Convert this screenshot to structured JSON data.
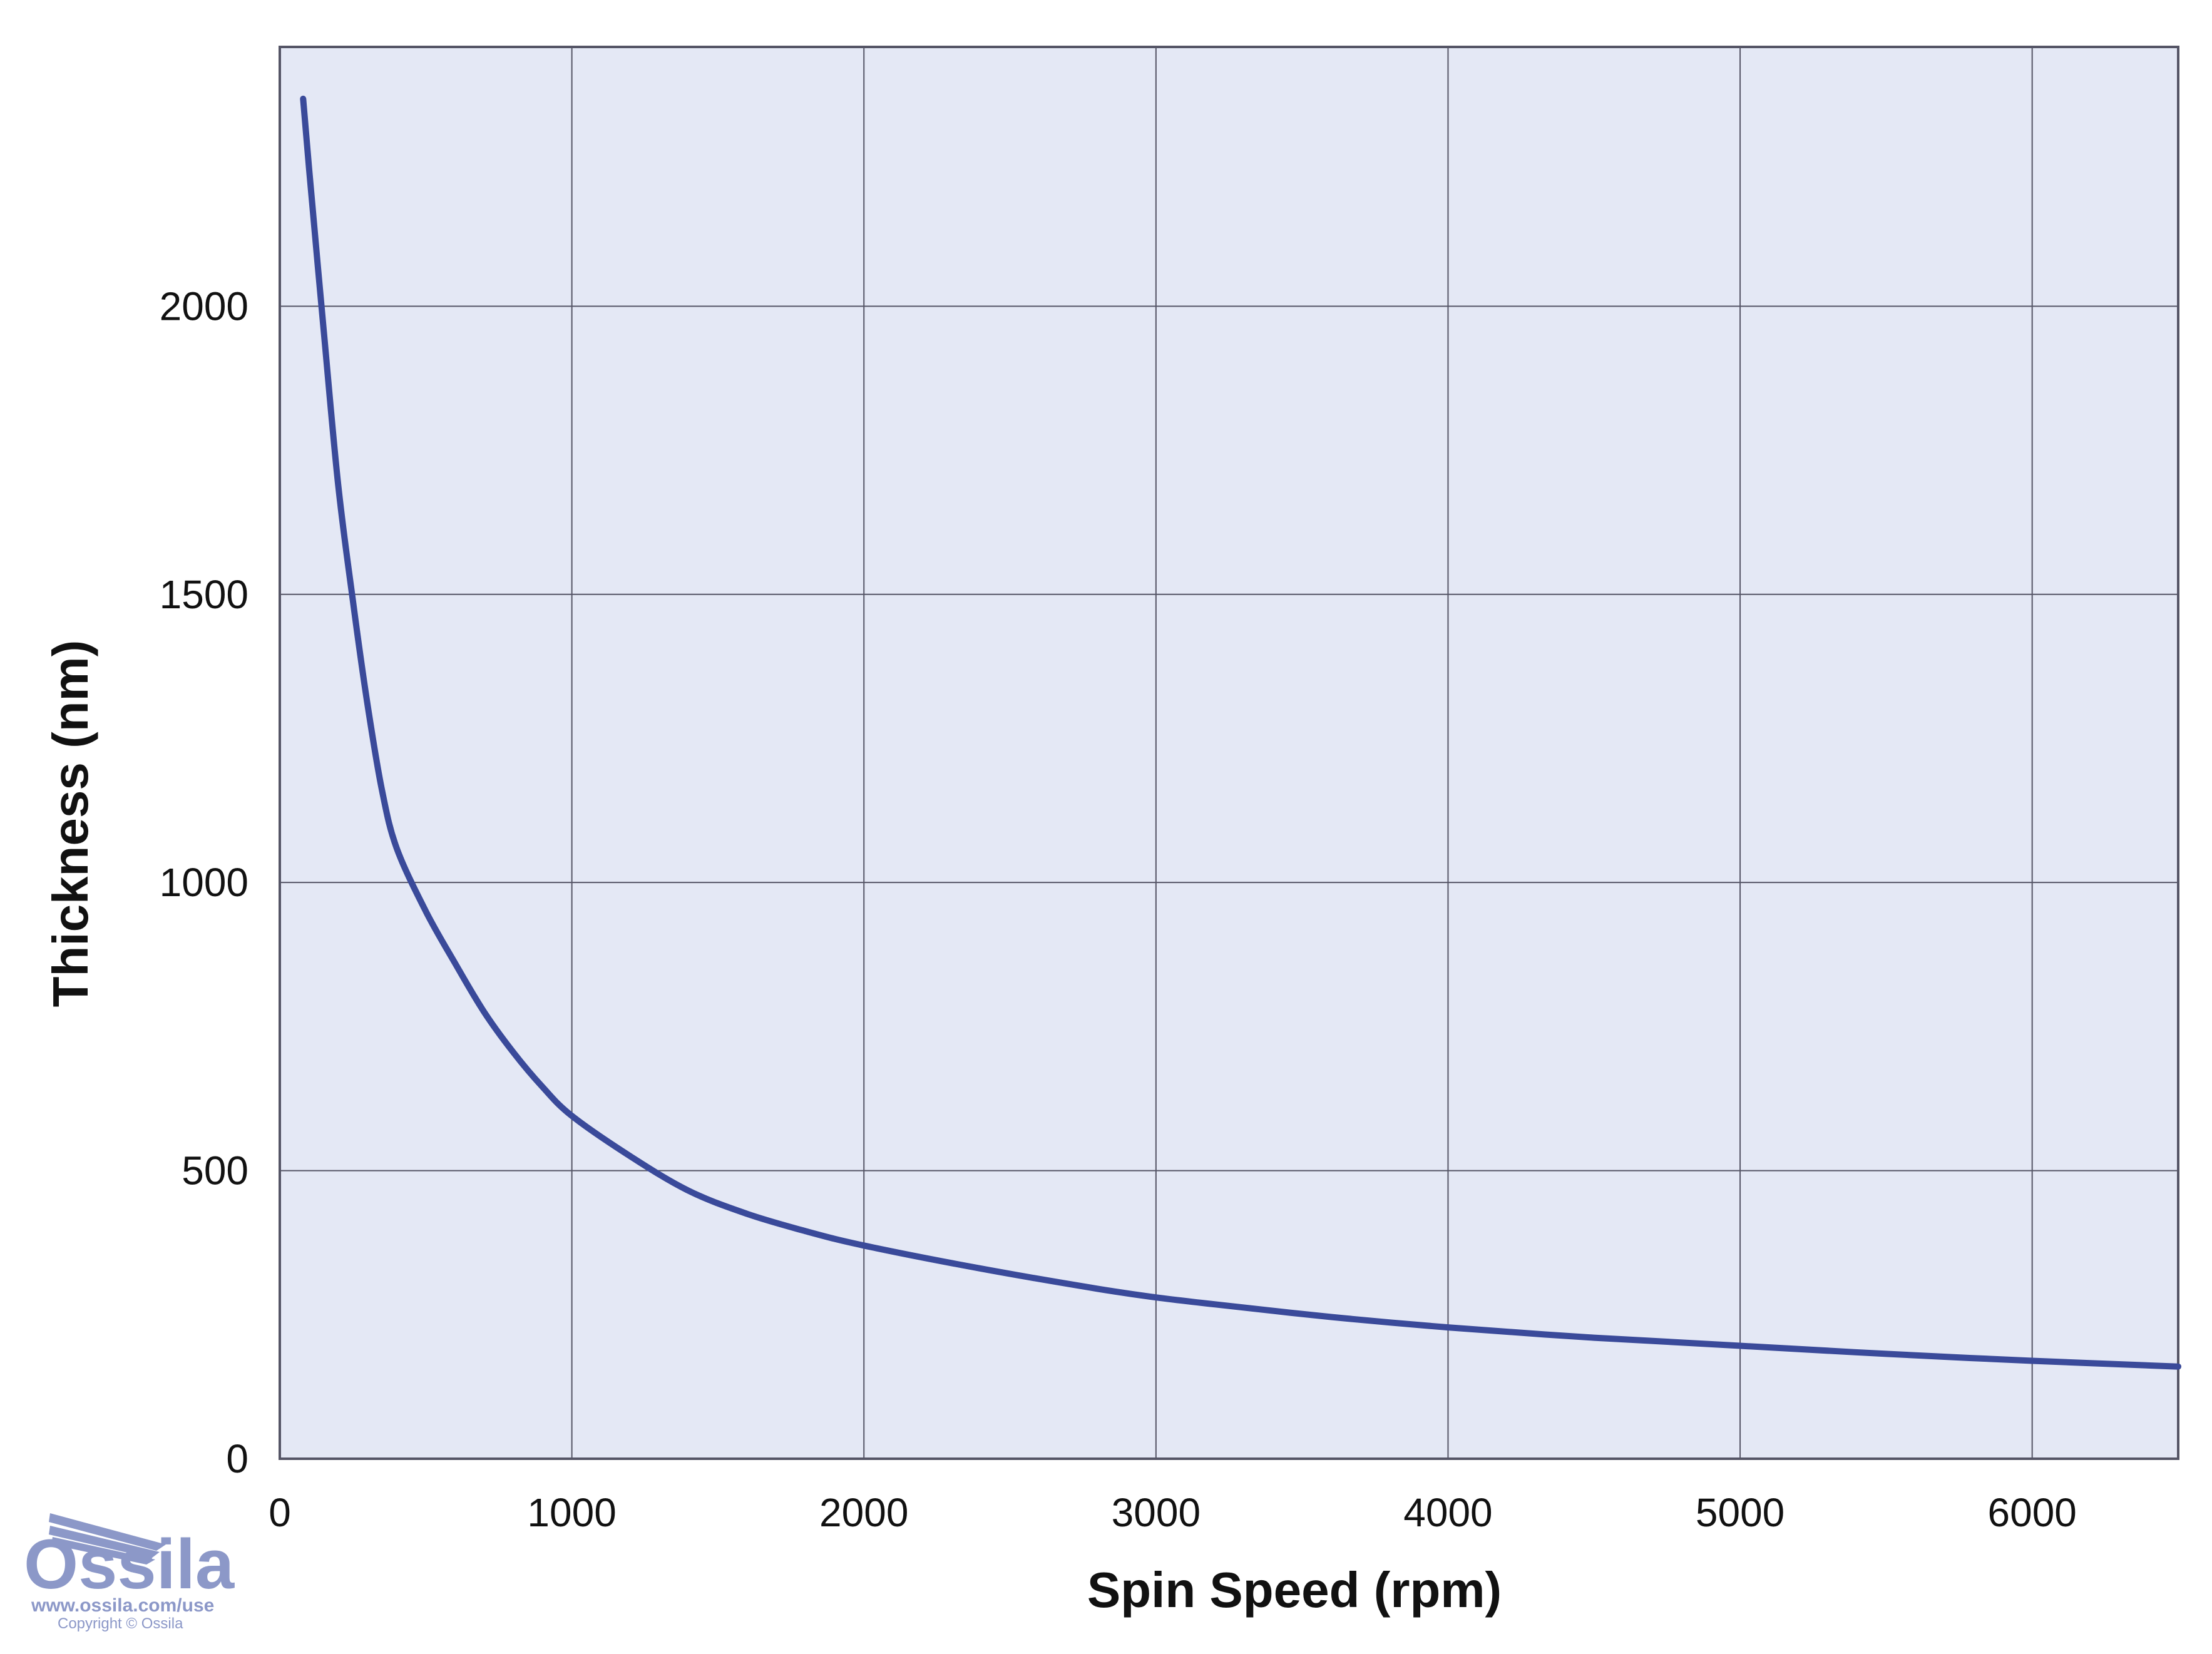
{
  "chart_data": {
    "type": "line",
    "xlabel": "Spin Speed (rpm)",
    "ylabel": "Thickness (nm)",
    "xlim": [
      0,
      6500
    ],
    "ylim": [
      0,
      2450
    ],
    "xticks": [
      "0",
      "1000",
      "2000",
      "3000",
      "4000",
      "5000",
      "6000"
    ],
    "yticks": [
      "0",
      "500",
      "1000",
      "1500",
      "2000"
    ],
    "grid": true,
    "series": [
      {
        "color": "#3a4a9a",
        "x": [
          80,
          100,
          150,
          200,
          250,
          300,
          350,
          400,
          500,
          600,
          700,
          800,
          900,
          1000,
          1200,
          1400,
          1600,
          1800,
          2000,
          2400,
          2800,
          3000,
          3200,
          3600,
          4000,
          4500,
          5000,
          5500,
          6000,
          6500
        ],
        "y": [
          2360,
          2240,
          1960,
          1690,
          1490,
          1310,
          1160,
          1060,
          950,
          860,
          775,
          705,
          645,
          595,
          525,
          465,
          425,
          395,
          370,
          330,
          295,
          280,
          268,
          246,
          228,
          210,
          196,
          182,
          170,
          160
        ]
      }
    ],
    "plot_bg": "#e4e8f5",
    "grid_color": "#555566"
  },
  "logo": {
    "name": "Ossila",
    "url": "www.ossila.com/use",
    "copyright": "Copyright © Ossila",
    "color": "#8c98c8"
  }
}
